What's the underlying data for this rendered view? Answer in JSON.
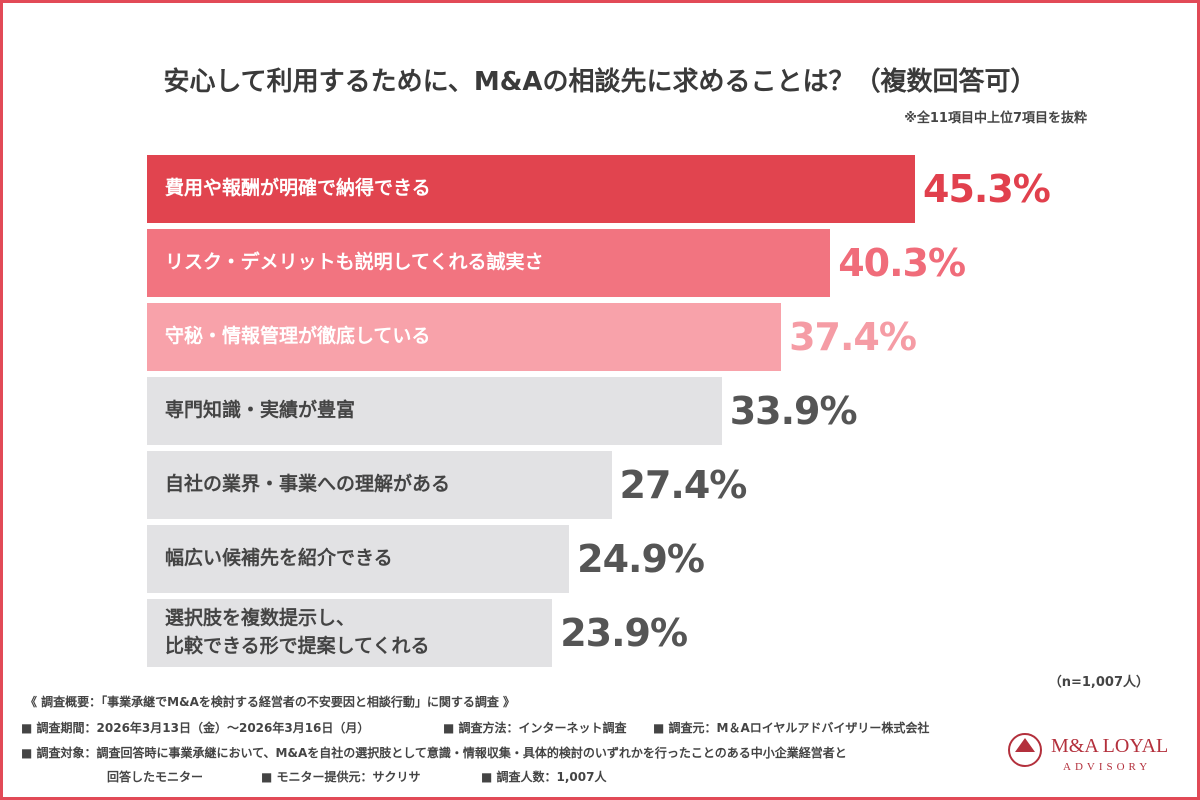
{
  "chart_data": {
    "type": "hbar",
    "title": "安心して利用するために、M&Aの相談先に求めることは？（複数回答可）",
    "subtitle": "※全11項目中上位7項目を抜粋",
    "categories": [
      "費用や報酬が明確で納得できる",
      "リスク・デメリットも説明してくれる誠実さ",
      "守秘・情報管理が徹底している",
      "専門知識・実績が豊富",
      "自社の業界・事業への理解がある",
      "幅広い候補先を紹介できる",
      "選択肢を複数提示し、\n比較できる形で提案してくれる"
    ],
    "values": [
      45.3,
      40.3,
      37.4,
      33.9,
      27.4,
      24.9,
      23.9
    ],
    "value_labels": [
      "45.3%",
      "40.3%",
      "37.4%",
      "33.9%",
      "27.4%",
      "24.9%",
      "23.9%"
    ],
    "colors": [
      "#e1444f",
      "#f27480",
      "#f8a2aa",
      "#e2e2e4",
      "#e2e2e4",
      "#e2e2e4",
      "#e2e2e4"
    ],
    "label_colors": [
      "#e1404d",
      "#f06c7a",
      "#f59ca5",
      "#555555",
      "#555555",
      "#555555",
      "#555555"
    ],
    "text_colors": [
      "#ffffff",
      "#ffffff",
      "#ffffff",
      "#444444",
      "#444444",
      "#444444",
      "#444444"
    ],
    "sample_note": "（n=1,007人）"
  },
  "footer": {
    "notes": [
      "《 調査概要：「事業承継でM&Aを検討する経営者の不安要因と相談行動」に関する調査 》",
      "■ 調査期間：2026年3月13日（金）〜2026年3月16日（月）",
      "■ 調査方法：インターネット調査",
      "■ 調査元：M＆Aロイヤルアドバイザリー株式会社",
      "■ 調査対象：調査回答時に事業承継において、M&Aを自社の選択肢として意識・情報収集・具体的検討のいずれかを行ったことのある中小企業経営者と",
      "回答したモニター",
      "■ モニター提供元：サクリサ",
      "■ 調査人数：1,007人"
    ],
    "logo": {
      "name": "M&A LOYAL",
      "sub": "ADVISORY"
    }
  }
}
